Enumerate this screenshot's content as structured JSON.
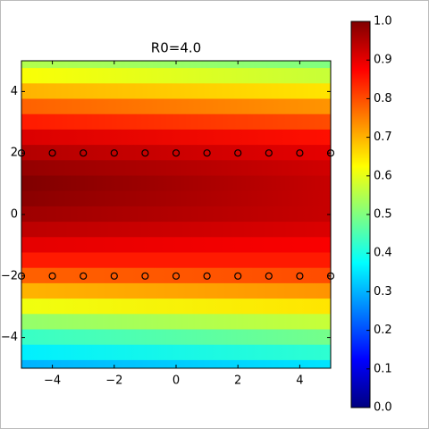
{
  "chart_data": {
    "type": "heatmap",
    "title": "R0=4.0",
    "xlim": [
      -5,
      5
    ],
    "ylim": [
      -5,
      5
    ],
    "xticks": [
      {
        "value": -4,
        "label": "−4"
      },
      {
        "value": -2,
        "label": "−2"
      },
      0,
      2,
      4
    ],
    "yticks": [
      {
        "value": -4,
        "label": "−4"
      },
      {
        "value": -2,
        "label": "−2"
      },
      0,
      2,
      4
    ],
    "colormap": "jet",
    "clim": [
      0,
      1
    ],
    "cticks": [
      {
        "value": 0,
        "label": "0.0"
      },
      {
        "value": 0.1,
        "label": "0.1"
      },
      {
        "value": 0.2,
        "label": "0.2"
      },
      {
        "value": 0.3,
        "label": "0.3"
      },
      {
        "value": 0.4,
        "label": "0.4"
      },
      {
        "value": 0.5,
        "label": "0.5"
      },
      {
        "value": 0.6,
        "label": "0.6"
      },
      {
        "value": 0.7,
        "label": "0.7"
      },
      {
        "value": 0.8,
        "label": "0.8"
      },
      {
        "value": 0.9,
        "label": "0.9"
      },
      {
        "value": 1,
        "label": "1.0"
      }
    ],
    "x": [
      -5,
      5
    ],
    "y": [
      5,
      4.5,
      4,
      3.5,
      3,
      2.5,
      2,
      1.5,
      1,
      0.5,
      0,
      -0.5,
      -1,
      -1.5,
      -2,
      -2.5,
      -3,
      -3.5,
      -4,
      -4.5,
      -5
    ],
    "z": [
      [
        0.55,
        0.5
      ],
      [
        0.62,
        0.57
      ],
      [
        0.7,
        0.65
      ],
      [
        0.78,
        0.73
      ],
      [
        0.85,
        0.8
      ],
      [
        0.91,
        0.86
      ],
      [
        0.95,
        0.9
      ],
      [
        0.98,
        0.92
      ],
      [
        1.0,
        0.93
      ],
      [
        0.99,
        0.93
      ],
      [
        0.97,
        0.93
      ],
      [
        0.94,
        0.91
      ],
      [
        0.9,
        0.88
      ],
      [
        0.85,
        0.85
      ],
      [
        0.78,
        0.8
      ],
      [
        0.7,
        0.73
      ],
      [
        0.61,
        0.65
      ],
      [
        0.52,
        0.57
      ],
      [
        0.43,
        0.49
      ],
      [
        0.36,
        0.42
      ],
      [
        0.3,
        0.35
      ]
    ],
    "points": {
      "x": [
        -5,
        -4,
        -3,
        -2,
        -1,
        0,
        1,
        2,
        3,
        4,
        5,
        -5,
        -4,
        -3,
        -2,
        -1,
        0,
        1,
        2,
        3,
        4,
        5
      ],
      "y": [
        2,
        2,
        2,
        2,
        2,
        2,
        2,
        2,
        2,
        2,
        2,
        -2,
        -2,
        -2,
        -2,
        -2,
        -2,
        -2,
        -2,
        -2,
        -2,
        -2
      ]
    }
  }
}
